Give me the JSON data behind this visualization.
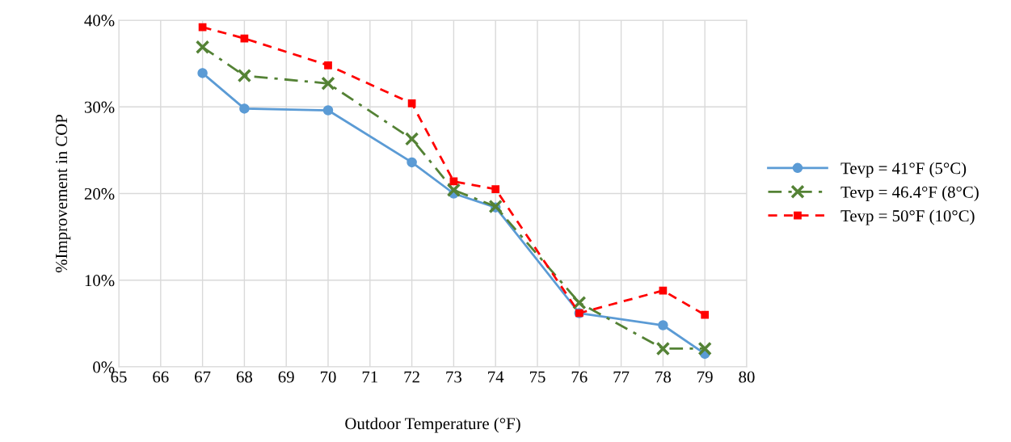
{
  "chart_data": {
    "type": "line",
    "xlabel": "Outdoor Temperature (°F)",
    "ylabel": "%Improvement in COP",
    "x": [
      67,
      68,
      70,
      72,
      73,
      74,
      76,
      78,
      79
    ],
    "series": [
      {
        "name": "Tevp = 41°F (5°C)",
        "color": "#5b9bd5",
        "marker": "circle",
        "line_style": "solid",
        "values": [
          33.9,
          29.8,
          29.6,
          23.6,
          20.0,
          18.4,
          6.2,
          4.8,
          1.5
        ]
      },
      {
        "name": "Tevp = 46.4°F (8°C)",
        "color": "#548235",
        "marker": "cross",
        "line_style": "dashdot",
        "values": [
          36.9,
          33.6,
          32.7,
          26.3,
          20.4,
          18.5,
          7.4,
          2.1,
          2.1
        ]
      },
      {
        "name": "Tevp = 50°F (10°C)",
        "color": "#ff0000",
        "marker": "square",
        "line_style": "dashed",
        "values": [
          39.2,
          37.9,
          34.8,
          30.4,
          21.4,
          20.5,
          6.2,
          8.8,
          6.0
        ]
      }
    ],
    "xlim": [
      65,
      80
    ],
    "xticks": [
      65,
      66,
      67,
      68,
      69,
      70,
      71,
      72,
      73,
      74,
      75,
      76,
      77,
      78,
      79,
      80
    ],
    "ylim": [
      0,
      40
    ],
    "yticks": [
      {
        "value": 0,
        "label": "0%"
      },
      {
        "value": 10,
        "label": "10%"
      },
      {
        "value": 20,
        "label": "20%"
      },
      {
        "value": 30,
        "label": "30%"
      },
      {
        "value": 40,
        "label": "40%"
      }
    ],
    "grid": true,
    "legend": "right"
  }
}
